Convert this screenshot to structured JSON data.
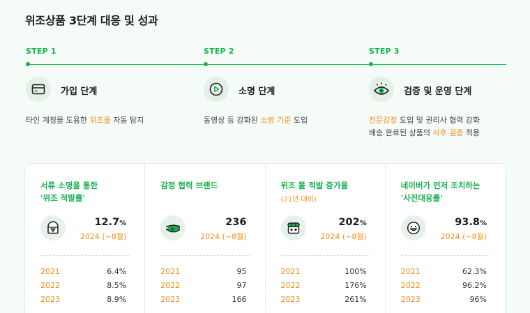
{
  "page_title": "위조상품 3단계 대응 및 성과",
  "steps": [
    {
      "label": "STEP 1",
      "icon": "card-icon",
      "title": "가입 단계",
      "desc": [
        [
          {
            "t": "타인 계정을 도용한 "
          },
          {
            "t": "위조몰",
            "hl": true
          },
          {
            "t": " 자동 탐지"
          }
        ]
      ]
    },
    {
      "label": "STEP 2",
      "icon": "play-icon",
      "title": "소명 단계",
      "desc": [
        [
          {
            "t": "동영상 등 강화된 "
          },
          {
            "t": "소명 기준",
            "hl": true
          },
          {
            "t": " 도입"
          }
        ]
      ]
    },
    {
      "label": "STEP 3",
      "icon": "eye-icon",
      "title": "검증 및 운영 단계",
      "desc": [
        [
          {
            "t": "전문감정",
            "hl": true
          },
          {
            "t": " 도입 및 권리사 협력 강화"
          }
        ],
        [
          {
            "t": "배송 완료된 상품의 "
          },
          {
            "t": "사후 검증",
            "hl": true
          },
          {
            "t": " 적용"
          }
        ]
      ]
    }
  ],
  "stats": [
    {
      "title_lines": [
        "서류 소명을 통한",
        "'위조 적발률'"
      ],
      "subtitle": "",
      "icon": "shield-badge-icon",
      "value": "12.7",
      "unit": "%",
      "period": "2024 (~8월)",
      "history": [
        {
          "year": "2021",
          "value": "6.4%"
        },
        {
          "year": "2022",
          "value": "8.5%"
        },
        {
          "year": "2023",
          "value": "8.9%"
        }
      ]
    },
    {
      "title_lines": [
        "감정 협력 브랜드"
      ],
      "subtitle": "",
      "icon": "handshake-icon",
      "value": "236",
      "unit": "",
      "period": "2024 (~8월)",
      "history": [
        {
          "year": "2021",
          "value": "95"
        },
        {
          "year": "2022",
          "value": "97"
        },
        {
          "year": "2023",
          "value": "166"
        }
      ]
    },
    {
      "title_lines": [
        "위조 몰 적발 증가율"
      ],
      "subtitle": "(21년 대비)",
      "icon": "store-icon",
      "value": "202",
      "unit": "%",
      "period": "2024 (~8월)",
      "history": [
        {
          "year": "2021",
          "value": "100%"
        },
        {
          "year": "2022",
          "value": "176%"
        },
        {
          "year": "2023",
          "value": "261%"
        }
      ]
    },
    {
      "title_lines": [
        "네이버가 먼저 조치하는",
        "'사전대응률'"
      ],
      "subtitle": "",
      "icon": "smile-icon",
      "value": "93.8",
      "unit": "%",
      "period": "2024 (~8월)",
      "history": [
        {
          "year": "2021",
          "value": "62.3%"
        },
        {
          "year": "2022",
          "value": "96.2%"
        },
        {
          "year": "2023",
          "value": "96%"
        }
      ]
    }
  ],
  "colors": {
    "accent_green": "#18b24f",
    "highlight_orange": "#f08c1a",
    "background": "#f5fbf7"
  }
}
